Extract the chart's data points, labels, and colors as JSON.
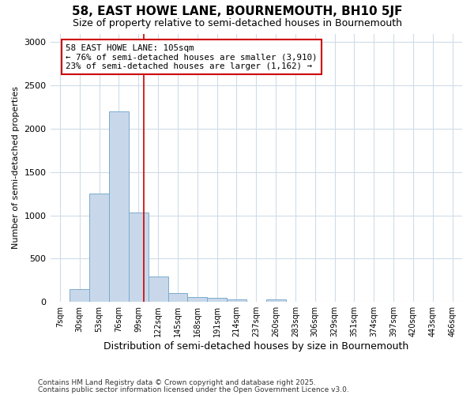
{
  "title1": "58, EAST HOWE LANE, BOURNEMOUTH, BH10 5JF",
  "title2": "Size of property relative to semi-detached houses in Bournemouth",
  "xlabel": "Distribution of semi-detached houses by size in Bournemouth",
  "ylabel": "Number of semi-detached properties",
  "categories": [
    "7sqm",
    "30sqm",
    "53sqm",
    "76sqm",
    "99sqm",
    "122sqm",
    "145sqm",
    "168sqm",
    "191sqm",
    "214sqm",
    "237sqm",
    "260sqm",
    "283sqm",
    "306sqm",
    "329sqm",
    "351sqm",
    "374sqm",
    "397sqm",
    "420sqm",
    "443sqm",
    "466sqm"
  ],
  "values": [
    0,
    150,
    1250,
    2200,
    1030,
    290,
    100,
    55,
    45,
    25,
    0,
    30,
    0,
    0,
    0,
    0,
    0,
    0,
    0,
    0,
    0
  ],
  "bar_color": "#c8d8ea",
  "bar_edge_color": "#7aaace",
  "annotation_label": "58 EAST HOWE LANE: 105sqm",
  "annotation_smaller": "← 76% of semi-detached houses are smaller (3,910)",
  "annotation_larger": "23% of semi-detached houses are larger (1,162) →",
  "ylim": [
    0,
    3100
  ],
  "yticks": [
    0,
    500,
    1000,
    1500,
    2000,
    2500,
    3000
  ],
  "footnote1": "Contains HM Land Registry data © Crown copyright and database right 2025.",
  "footnote2": "Contains public sector information licensed under the Open Government Licence v3.0.",
  "bg_color": "#ffffff",
  "grid_color": "#d0dce8",
  "annotation_box_color": "#ffffff",
  "vline_color": "#cc0000",
  "vline_pos": 4.26
}
